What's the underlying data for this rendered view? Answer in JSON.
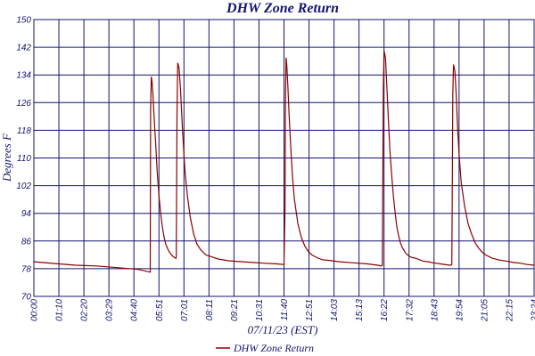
{
  "chart_data": {
    "type": "line",
    "title": "DHW Zone Return",
    "xlabel": "07/11/23 (EST)",
    "ylabel": "Degrees F",
    "ylim": [
      70,
      150
    ],
    "yticks": [
      70,
      78,
      86,
      94,
      102,
      110,
      118,
      126,
      134,
      142,
      150
    ],
    "xlim": [
      0,
      1440
    ],
    "xtick_labels": [
      "00:00",
      "01:10",
      "02:20",
      "03:29",
      "04:40",
      "05:51",
      "07:01",
      "08:11",
      "09:21",
      "10:31",
      "11:40",
      "12:51",
      "14:03",
      "15:13",
      "16:22",
      "17:32",
      "18:43",
      "19:54",
      "21:05",
      "22:15",
      "23:24"
    ],
    "grid": true,
    "legend_position": "bottom-center",
    "colors": {
      "series": "#8b0000",
      "grid": "#14146e",
      "text": "#14146e"
    },
    "series": [
      {
        "name": "DHW Zone Return",
        "x_minutes": [
          0,
          60,
          120,
          180,
          240,
          300,
          335,
          336,
          338,
          340,
          343,
          346,
          350,
          355,
          360,
          365,
          370,
          375,
          380,
          385,
          390,
          395,
          400,
          405,
          409,
          410,
          412,
          414,
          418,
          422,
          428,
          435,
          442,
          450,
          460,
          470,
          480,
          495,
          510,
          530,
          560,
          600,
          630,
          660,
          700,
          720,
          723,
          724,
          726,
          728,
          731,
          735,
          740,
          745,
          750,
          760,
          770,
          780,
          790,
          800,
          815,
          830,
          850,
          880,
          920,
          960,
          990,
          1000,
          1003,
          1004,
          1006,
          1008,
          1012,
          1016,
          1020,
          1025,
          1030,
          1035,
          1040,
          1045,
          1050,
          1055,
          1060,
          1070,
          1080,
          1090,
          1100,
          1110,
          1120,
          1135,
          1150,
          1170,
          1190,
          1200,
          1203,
          1204,
          1206,
          1208,
          1212,
          1216,
          1220,
          1225,
          1230,
          1240,
          1250,
          1260,
          1270,
          1280,
          1290,
          1300,
          1320,
          1340,
          1360,
          1380,
          1400,
          1420,
          1440
        ],
        "y": [
          80.0,
          79.5,
          79.0,
          78.8,
          78.3,
          77.8,
          77.0,
          124,
          133.5,
          132.0,
          128.0,
          122.0,
          115.0,
          106.0,
          99.0,
          94.0,
          90.0,
          87.0,
          85.0,
          83.8,
          82.8,
          82.2,
          81.6,
          81.2,
          81.0,
          81.5,
          122.0,
          137.5,
          136.0,
          130.0,
          118.0,
          106.0,
          99.0,
          93.0,
          88.0,
          85.0,
          83.5,
          82.0,
          81.5,
          80.8,
          80.3,
          80.0,
          79.8,
          79.6,
          79.4,
          79.2,
          96.0,
          124.0,
          139.0,
          137.0,
          131.0,
          122.0,
          112.0,
          104.0,
          98.0,
          91.0,
          87.0,
          84.5,
          83.0,
          82.0,
          81.2,
          80.6,
          80.4,
          80.0,
          79.7,
          79.4,
          79.0,
          78.8,
          79.0,
          95.0,
          130.0,
          141.0,
          139.0,
          131.0,
          122.0,
          112.0,
          105.0,
          99.0,
          94.0,
          90.0,
          87.5,
          85.5,
          84.2,
          82.5,
          81.6,
          81.2,
          81.0,
          80.6,
          80.2,
          80.0,
          79.7,
          79.4,
          79.1,
          79.0,
          79.2,
          95.0,
          128.0,
          137.0,
          135.0,
          128.0,
          118.0,
          110.0,
          103.0,
          96.0,
          91.0,
          88.0,
          85.5,
          84.0,
          82.8,
          82.0,
          81.0,
          80.5,
          80.2,
          79.8,
          79.6,
          79.2,
          79.0
        ]
      }
    ]
  }
}
